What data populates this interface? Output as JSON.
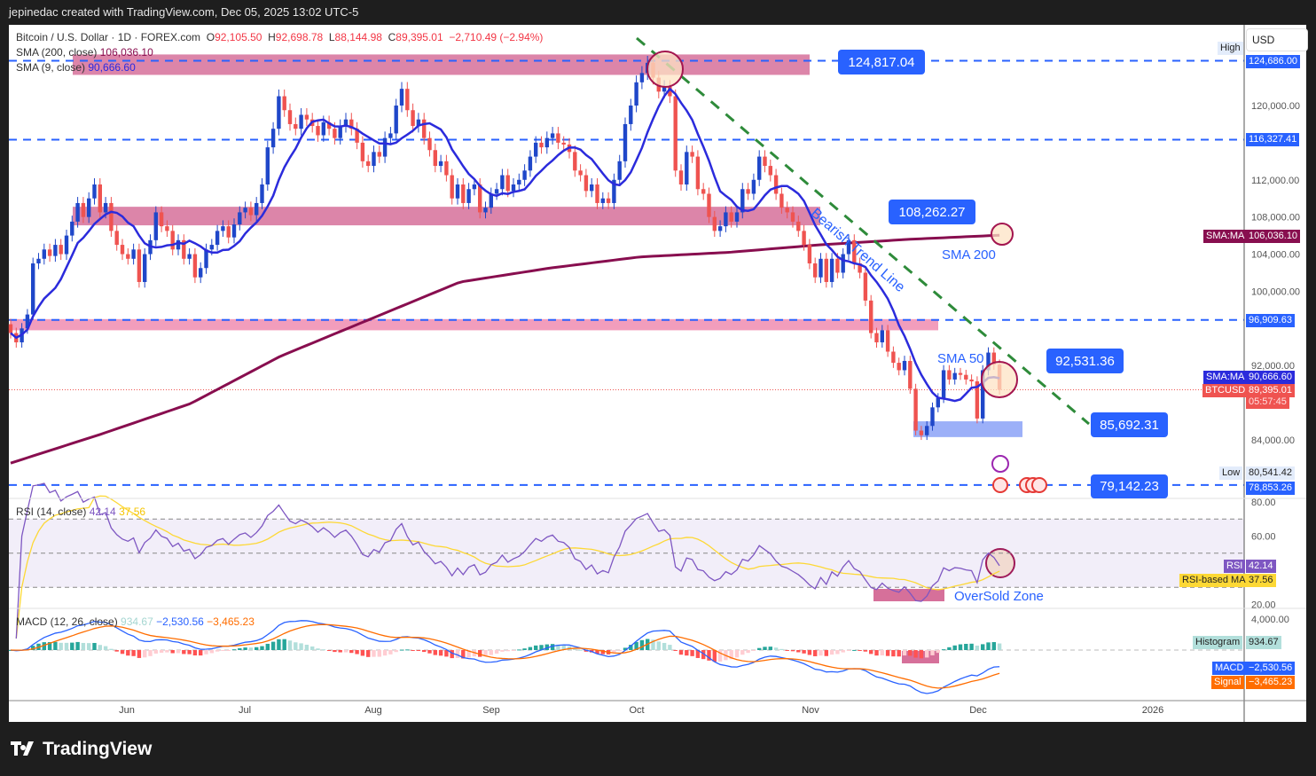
{
  "header": {
    "credit": "jepinedac created with TradingView.com, Dec 05, 2025 13:02 UTC-5"
  },
  "legend": {
    "symbol": "Bitcoin / U.S. Dollar · 1D · FOREX.com",
    "open": "92,105.50",
    "high": "92,698.78",
    "low": "88,144.98",
    "close": "89,395.01",
    "change": "−2,710.49 (−2.94%)",
    "sma200_label": "SMA (200, close)",
    "sma200_value": "106,036.10",
    "sma9_label": "SMA (9, close)",
    "sma9_value": "90,666.60",
    "rsi_label": "RSI (14, close)",
    "rsi_value": "42.14",
    "rsi_ma_value": "37.56",
    "macd_label": "MACD (12, 26, close)",
    "macd_hist": "934.67",
    "macd_value": "−2,530.56",
    "macd_signal": "−3,465.23"
  },
  "axis": {
    "currency": "USD",
    "high_tag": "High",
    "high_value": "124,686.00",
    "low_tag": "Low",
    "low_value": "80,541.42",
    "line_labels": [
      "124,686.00",
      "116,327.41",
      "96,909.63",
      "78,853.26"
    ],
    "sma200_tag": "SMA:MA",
    "sma200_value": "106,036.10",
    "sma9_tag": "SMA:MA",
    "sma9_value": "90,666.60",
    "price_tag": "BTCUSD",
    "price_value": "89,395.01",
    "countdown": "05:57:45",
    "rsi_tag": "RSI",
    "rsi_value": "42.14",
    "rsi_ma_tag": "RSI-based MA",
    "rsi_ma_value": "37.56",
    "hist_tag": "Histogram",
    "hist_value": "934.67",
    "macd_tag": "MACD",
    "macd_value": "−2,530.56",
    "signal_tag": "Signal",
    "signal_value": "−3,465.23"
  },
  "annotations": {
    "levels": [
      "124,817.04",
      "108,262.27",
      "92,531.36",
      "85,692.31",
      "79,142.23"
    ],
    "trend_text": "Bearish Trend Line",
    "sma200_text": "SMA 200",
    "sma50_text": "SMA 50",
    "oversold_text": "OverSold Zone"
  },
  "chart_data": {
    "type": "candlestick",
    "symbol": "BTCUSD",
    "interval": "1D",
    "ylim": [
      78000,
      127000
    ],
    "price_ticks": [
      120000,
      112000,
      108000,
      104000,
      100000,
      92000,
      84000
    ],
    "price_tick_labels": [
      "120,000.00",
      "112,000.00",
      "108,000.00",
      "104,000.00",
      "100,000.00",
      "92,000.00",
      "84,000.00"
    ],
    "x_tick_labels": [
      "Jun",
      "Jul",
      "Aug",
      "Sep",
      "Oct",
      "Nov",
      "Dec",
      "2026"
    ],
    "horizontal_levels": [
      124817.04,
      116327.41,
      96909.63,
      79142.23
    ],
    "zones": [
      {
        "from": 123300,
        "to": 125500,
        "color": "#d6709a"
      },
      {
        "from": 107100,
        "to": 109100,
        "color": "#d6709a"
      },
      {
        "from": 95800,
        "to": 97000,
        "color": "#f08cb0"
      },
      {
        "from": 84300,
        "to": 86000,
        "color": "#7b96f5"
      }
    ],
    "colors": {
      "up": "#1f47c9",
      "down": "#ef5350",
      "sma9": "#2b2bdc",
      "sma200": "#880e4f",
      "trend": "#2e8b3a",
      "level": "#2962ff",
      "rsi": "#7e57c2",
      "rsi_ma": "#fdd835",
      "macd": "#2962ff",
      "signal": "#ff6d00"
    },
    "close": [
      95500,
      94500,
      96000,
      97500,
      103000,
      103500,
      104500,
      103800,
      105000,
      104000,
      106000,
      107500,
      109500,
      108000,
      110000,
      111500,
      108500,
      109500,
      106500,
      105000,
      104000,
      103500,
      104500,
      101000,
      104000,
      105500,
      108500,
      107000,
      106500,
      104500,
      105500,
      103500,
      104000,
      101500,
      102500,
      104500,
      105000,
      106500,
      107000,
      105800,
      107200,
      108500,
      109000,
      108200,
      109500,
      111500,
      115500,
      117500,
      121000,
      119500,
      118000,
      117500,
      119000,
      118500,
      117800,
      116800,
      118200,
      117500,
      116500,
      117800,
      118500,
      117500,
      116000,
      114000,
      113500,
      115000,
      114500,
      116500,
      117000,
      120000,
      121800,
      119500,
      117800,
      118500,
      116500,
      115200,
      113500,
      114000,
      112500,
      110000,
      111500,
      109500,
      111000,
      111500,
      108500,
      109000,
      110500,
      111000,
      112500,
      110800,
      111500,
      112000,
      113000,
      114500,
      116000,
      115500,
      116500,
      117000,
      116000,
      115800,
      115000,
      113000,
      112500,
      110800,
      111500,
      109500,
      110000,
      109500,
      112000,
      114000,
      118000,
      120000,
      122500,
      123500,
      124600,
      123000,
      121500,
      122000,
      121000,
      113000,
      111500,
      115000,
      114500,
      111000,
      110500,
      108000,
      106500,
      107000,
      108500,
      107500,
      108500,
      111000,
      110500,
      112000,
      114500,
      113500,
      112500,
      110500,
      109000,
      108500,
      107500,
      106500,
      105000,
      103000,
      101500,
      103500,
      101000,
      103500,
      102000,
      104000,
      105500,
      103000,
      102000,
      99000,
      95500,
      94500,
      95800,
      93500,
      92300,
      91500,
      92500,
      89500,
      85000,
      84500,
      85500,
      87500,
      88500,
      91500,
      90500,
      91200,
      91000,
      90500,
      90300,
      86300,
      91500,
      93400,
      92100,
      89395
    ],
    "sma200": [
      81500,
      84600,
      87900,
      93000,
      97000,
      101000,
      102500,
      103700,
      104200,
      105000,
      105600,
      106036
    ],
    "rsi_levels": [
      70,
      50,
      30
    ],
    "rsi_ticks": [
      "80.00",
      "60.00",
      "20.00"
    ],
    "macd_ticks": [
      "4,000.00"
    ]
  }
}
